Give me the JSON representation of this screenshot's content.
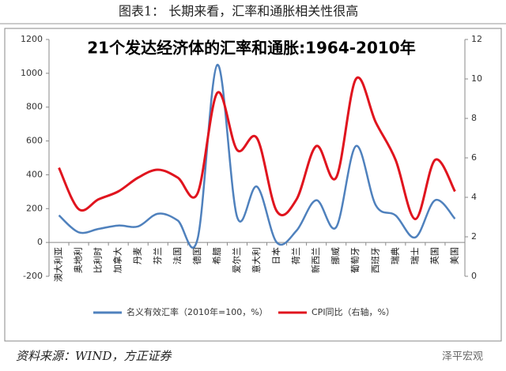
{
  "header": {
    "title": "图表1：  长期来看，汇率和通胀相关性很高"
  },
  "chart_data": {
    "type": "line",
    "title": "21个发达经济体的汇率和通胀:1964-2010年",
    "categories": [
      "澳大利亚",
      "奥地利",
      "比利时",
      "加拿大",
      "丹麦",
      "芬兰",
      "法国",
      "德国",
      "希腊",
      "爱尔兰",
      "意大利",
      "日本",
      "荷兰",
      "新西兰",
      "挪威",
      "葡萄牙",
      "西班牙",
      "瑞典",
      "瑞士",
      "英国",
      "美国"
    ],
    "series": [
      {
        "name": "名义有效汇率（2010年=100，%）",
        "color": "#4f81bd",
        "values": [
          160,
          60,
          80,
          100,
          95,
          170,
          130,
          20,
          1050,
          150,
          330,
          0,
          70,
          250,
          90,
          570,
          220,
          160,
          30,
          250,
          140
        ]
      },
      {
        "name": "CPI同比（右轴，%）",
        "color": "#e0141e",
        "axis": "y2",
        "values": [
          5.5,
          3.4,
          3.9,
          4.3,
          5.0,
          5.4,
          5.0,
          4.2,
          9.3,
          6.4,
          7.0,
          3.3,
          3.9,
          6.6,
          5.0,
          10.0,
          7.8,
          5.9,
          2.9,
          5.9,
          4.3
        ]
      }
    ],
    "ylim": [
      -200,
      1200
    ],
    "yticks": [
      -200,
      0,
      200,
      400,
      600,
      800,
      1000,
      1200
    ],
    "y2lim": [
      0,
      12
    ],
    "y2ticks": [
      0,
      2,
      4,
      6,
      8,
      10,
      12
    ],
    "legend": "bottom"
  },
  "footer": {
    "source": "资料来源：WIND，方正证券",
    "watermark": "泽平宏观"
  }
}
